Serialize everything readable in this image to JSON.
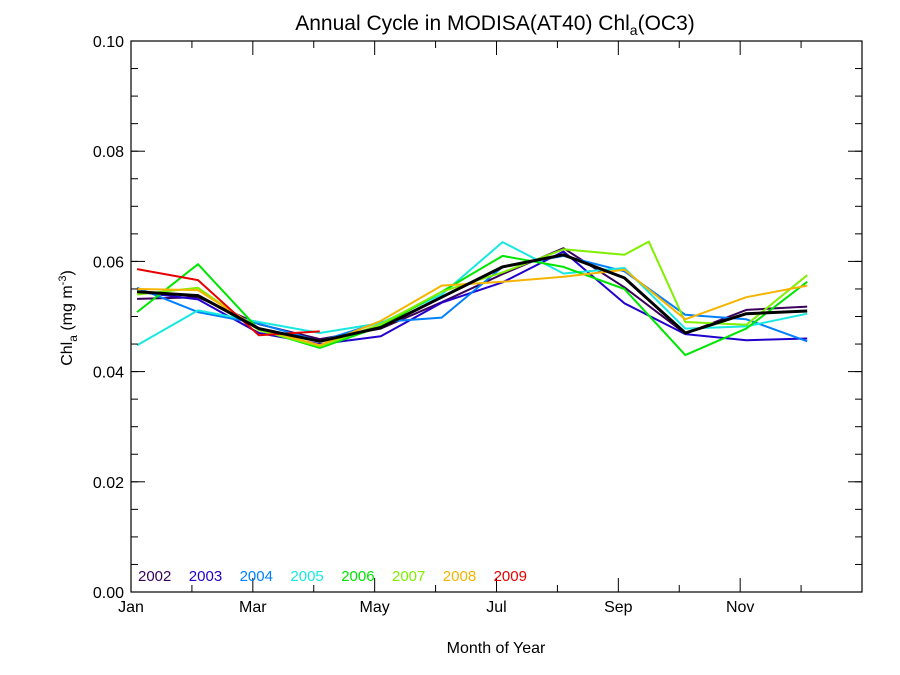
{
  "chart_data": {
    "type": "line",
    "title": {
      "main": "Annual Cycle in MODISA(AT40) Chl",
      "sub": "a",
      "suffix": "(OC3)"
    },
    "xlabel": "Month of Year",
    "ylabel": {
      "main": "Chl",
      "sub": "a",
      "unit": " (mg m",
      "sup": "-3",
      "close": ")"
    },
    "xlim": [
      0,
      12
    ],
    "ylim": [
      0,
      0.1
    ],
    "x_ticks": [
      {
        "x": 0,
        "label": "Jan"
      },
      {
        "x": 2,
        "label": "Mar"
      },
      {
        "x": 4,
        "label": "May"
      },
      {
        "x": 6,
        "label": "Jul"
      },
      {
        "x": 8,
        "label": "Sep"
      },
      {
        "x": 10,
        "label": "Nov"
      }
    ],
    "x_minor_ticks": [
      1,
      3,
      5,
      7,
      9,
      11
    ],
    "y_ticks": [
      {
        "y": 0.0,
        "label": "0.00"
      },
      {
        "y": 0.02,
        "label": "0.02"
      },
      {
        "y": 0.04,
        "label": "0.04"
      },
      {
        "y": 0.06,
        "label": "0.06"
      },
      {
        "y": 0.08,
        "label": "0.08"
      },
      {
        "y": 0.1,
        "label": "0.10"
      }
    ],
    "y_minor_step": 0.005,
    "grid": false,
    "legend_position": "bottom-left inside plot",
    "series": [
      {
        "name": "2002",
        "color": "#3a005a",
        "width": 2,
        "x": [
          0.1,
          1.1,
          2.1,
          3.1,
          4.1,
          5.1,
          6.1,
          7.1,
          8.1,
          9.1,
          10.1,
          11.1
        ],
        "y": [
          0.0532,
          0.0535,
          0.0486,
          0.0459,
          0.0478,
          0.0526,
          0.0577,
          0.0624,
          0.0553,
          0.0469,
          0.0512,
          0.0518
        ]
      },
      {
        "name": "2003",
        "color": "#2200cc",
        "width": 2,
        "x": [
          0.1,
          1.1,
          2.1,
          3.1,
          4.1,
          5.1,
          6.1,
          7.1,
          8.1,
          9.1,
          10.1,
          11.1
        ],
        "y": [
          0.0545,
          0.0531,
          0.047,
          0.045,
          0.0464,
          0.0525,
          0.0562,
          0.0618,
          0.0524,
          0.0468,
          0.0457,
          0.046
        ]
      },
      {
        "name": "2004",
        "color": "#0080ff",
        "width": 2,
        "x": [
          0.1,
          1.1,
          2.1,
          3.1,
          4.1,
          5.1,
          6.1,
          7.1,
          8.1,
          9.1,
          10.1,
          11.1
        ],
        "y": [
          0.0552,
          0.0508,
          0.0487,
          0.0455,
          0.049,
          0.0498,
          0.059,
          0.061,
          0.0582,
          0.0503,
          0.0495,
          0.0455
        ]
      },
      {
        "name": "2005",
        "color": "#19e8e0",
        "width": 2,
        "x": [
          0.1,
          1.1,
          2.1,
          3.1,
          4.1,
          5.1,
          6.1,
          7.1,
          8.1,
          9.1,
          10.1,
          11.1
        ],
        "y": [
          0.0448,
          0.0511,
          0.049,
          0.047,
          0.0488,
          0.054,
          0.0635,
          0.0578,
          0.0588,
          0.0478,
          0.0482,
          0.0505
        ]
      },
      {
        "name": "2006",
        "color": "#00e600",
        "width": 2,
        "x": [
          0.1,
          1.1,
          2.1,
          3.1,
          4.1,
          5.1,
          6.1,
          7.1,
          8.1,
          9.1,
          10.1,
          11.1
        ],
        "y": [
          0.0508,
          0.0595,
          0.0476,
          0.0443,
          0.0482,
          0.0545,
          0.061,
          0.059,
          0.055,
          0.043,
          0.0478,
          0.0563
        ]
      },
      {
        "name": "2007",
        "color": "#80f000",
        "width": 2,
        "x": [
          0.1,
          1.1,
          2.1,
          3.1,
          4.1,
          5.1,
          6.1,
          7.1,
          8.1,
          8.5,
          9.1,
          10.1,
          11.1
        ],
        "y": [
          0.054,
          0.0552,
          0.0475,
          0.0446,
          0.0486,
          0.0545,
          0.058,
          0.0622,
          0.0612,
          0.0636,
          0.049,
          0.0485,
          0.0575
        ]
      },
      {
        "name": "2008",
        "color": "#f5b400",
        "width": 2,
        "x": [
          0.1,
          1.1,
          2.1,
          3.1,
          4.1,
          5.1,
          6.1,
          7.1,
          8.1,
          9.1,
          10.1,
          11.1
        ],
        "y": [
          0.055,
          0.0548,
          0.0478,
          0.0448,
          0.0492,
          0.0556,
          0.0563,
          0.0572,
          0.0585,
          0.0495,
          0.0535,
          0.0556
        ]
      },
      {
        "name": "2009",
        "color": "#e60000",
        "width": 2,
        "x": [
          0.1,
          1.1,
          2.1,
          3.1
        ],
        "y": [
          0.0586,
          0.0566,
          0.0466,
          0.0473
        ]
      },
      {
        "name": "",
        "color": "#000000",
        "width": 3,
        "x": [
          0.1,
          1.1,
          2.1,
          3.1,
          4.1,
          5.1,
          6.1,
          7.1,
          8.1,
          9.1,
          10.1,
          11.1
        ],
        "y": [
          0.0545,
          0.0538,
          0.0478,
          0.0455,
          0.048,
          0.0535,
          0.059,
          0.0612,
          0.057,
          0.047,
          0.0505,
          0.051
        ]
      }
    ]
  }
}
